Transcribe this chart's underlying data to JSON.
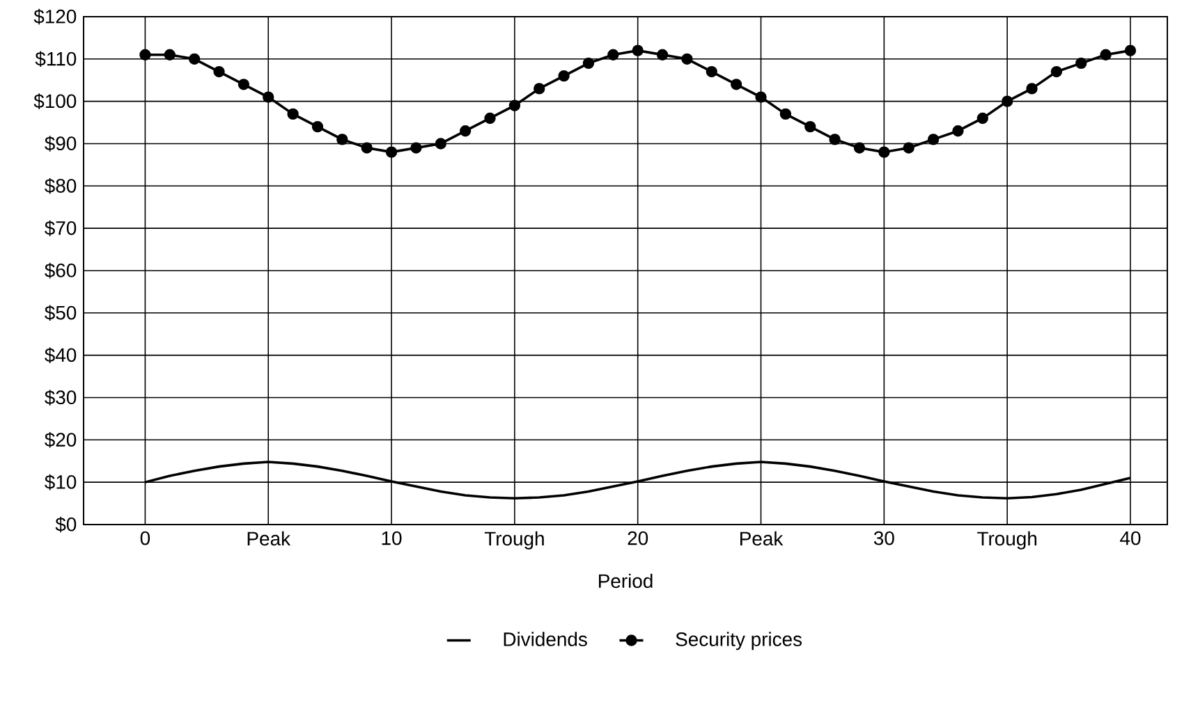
{
  "chart_data": {
    "type": "line",
    "xlabel": "Period",
    "x": [
      0,
      1,
      2,
      3,
      4,
      5,
      6,
      7,
      8,
      9,
      10,
      11,
      12,
      13,
      14,
      15,
      16,
      17,
      18,
      19,
      20,
      21,
      22,
      23,
      24,
      25,
      26,
      27,
      28,
      29,
      30,
      31,
      32,
      33,
      34,
      35,
      36,
      37,
      38,
      39,
      40
    ],
    "series": [
      {
        "name": "Dividends",
        "color": "#000000",
        "marker": "none",
        "values": [
          10,
          11.5,
          12.7,
          13.7,
          14.4,
          14.8,
          14.4,
          13.7,
          12.7,
          11.5,
          10.2,
          9,
          7.8,
          6.9,
          6.4,
          6.2,
          6.4,
          6.9,
          7.8,
          9,
          10.2,
          11.5,
          12.7,
          13.7,
          14.4,
          14.8,
          14.4,
          13.7,
          12.7,
          11.5,
          10.2,
          9,
          7.8,
          6.9,
          6.4,
          6.2,
          6.5,
          7.2,
          8.2,
          9.6,
          11
        ]
      },
      {
        "name": "Security prices",
        "color": "#000000",
        "marker": "circle",
        "values": [
          111,
          111,
          110,
          107,
          104,
          101,
          97,
          94,
          91,
          89,
          88,
          89,
          90,
          93,
          96,
          99,
          103,
          106,
          109,
          111,
          112,
          111,
          110,
          107,
          104,
          101,
          97,
          94,
          91,
          89,
          88,
          89,
          91,
          93,
          96,
          100,
          103,
          107,
          109,
          111,
          112
        ]
      }
    ],
    "xlim": [
      -2.5,
      41.5
    ],
    "ylim": [
      0,
      120
    ],
    "xticks": [
      0,
      {
        "value": 5,
        "label": "Peak"
      },
      10,
      {
        "value": 15,
        "label": "Trough"
      },
      20,
      {
        "value": 25,
        "label": "Peak"
      },
      30,
      {
        "value": 35,
        "label": "Trough"
      },
      40
    ],
    "yticks": [
      {
        "value": 0,
        "label": "$0"
      },
      {
        "value": 10,
        "label": "$10"
      },
      {
        "value": 20,
        "label": "$20"
      },
      {
        "value": 30,
        "label": "$30"
      },
      {
        "value": 40,
        "label": "$40"
      },
      {
        "value": 50,
        "label": "$50"
      },
      {
        "value": 60,
        "label": "$60"
      },
      {
        "value": 70,
        "label": "$70"
      },
      {
        "value": 80,
        "label": "$80"
      },
      {
        "value": 90,
        "label": "$90"
      },
      {
        "value": 100,
        "label": "$100"
      },
      {
        "value": 110,
        "label": "$110"
      },
      {
        "value": 120,
        "label": "$120"
      }
    ],
    "grid": true,
    "legend": "bottom",
    "line_style": "solid"
  }
}
